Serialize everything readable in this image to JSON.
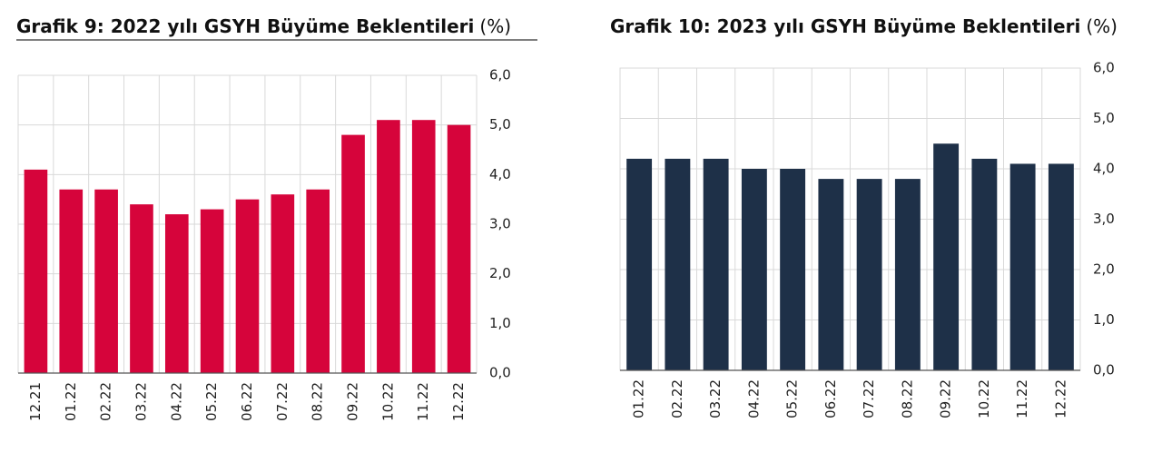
{
  "chart_data": [
    {
      "type": "bar",
      "title": "Grafik 9: 2022 yılı GSYH Büyüme Beklentileri",
      "unit": "(%)",
      "categories": [
        "12.21",
        "01.22",
        "02.22",
        "03.22",
        "04.22",
        "05.22",
        "06.22",
        "07.22",
        "08.22",
        "09.22",
        "10.22",
        "11.22",
        "12.22"
      ],
      "values": [
        4.1,
        3.7,
        3.7,
        3.4,
        3.2,
        3.3,
        3.5,
        3.6,
        3.7,
        4.8,
        5.1,
        5.1,
        5.0
      ],
      "color": "#d6043b",
      "ylim": [
        0,
        6
      ],
      "yticks": [
        {
          "value": 0,
          "label": "0,0"
        },
        {
          "value": 1,
          "label": "1,0"
        },
        {
          "value": 2,
          "label": "2,0"
        },
        {
          "value": 3,
          "label": "3,0"
        },
        {
          "value": 4,
          "label": "4,0"
        },
        {
          "value": 5,
          "label": "5,0"
        },
        {
          "value": 6,
          "label": "6,0"
        }
      ],
      "grid": true
    },
    {
      "type": "bar",
      "title": "Grafik 10: 2023 yılı GSYH Büyüme Beklentileri",
      "unit": "(%)",
      "categories": [
        "01.22",
        "02.22",
        "03.22",
        "04.22",
        "05.22",
        "06.22",
        "07.22",
        "08.22",
        "09.22",
        "10.22",
        "11.22",
        "12.22"
      ],
      "values": [
        4.2,
        4.2,
        4.2,
        4.0,
        4.0,
        3.8,
        3.8,
        3.8,
        4.5,
        4.2,
        4.1,
        4.1
      ],
      "color": "#1e3048",
      "ylim": [
        0,
        6
      ],
      "yticks": [
        {
          "value": 0,
          "label": "0,0"
        },
        {
          "value": 1,
          "label": "1,0"
        },
        {
          "value": 2,
          "label": "2,0"
        },
        {
          "value": 3,
          "label": "3,0"
        },
        {
          "value": 4,
          "label": "4,0"
        },
        {
          "value": 5,
          "label": "5,0"
        },
        {
          "value": 6,
          "label": "6,0"
        }
      ],
      "grid": true
    }
  ]
}
